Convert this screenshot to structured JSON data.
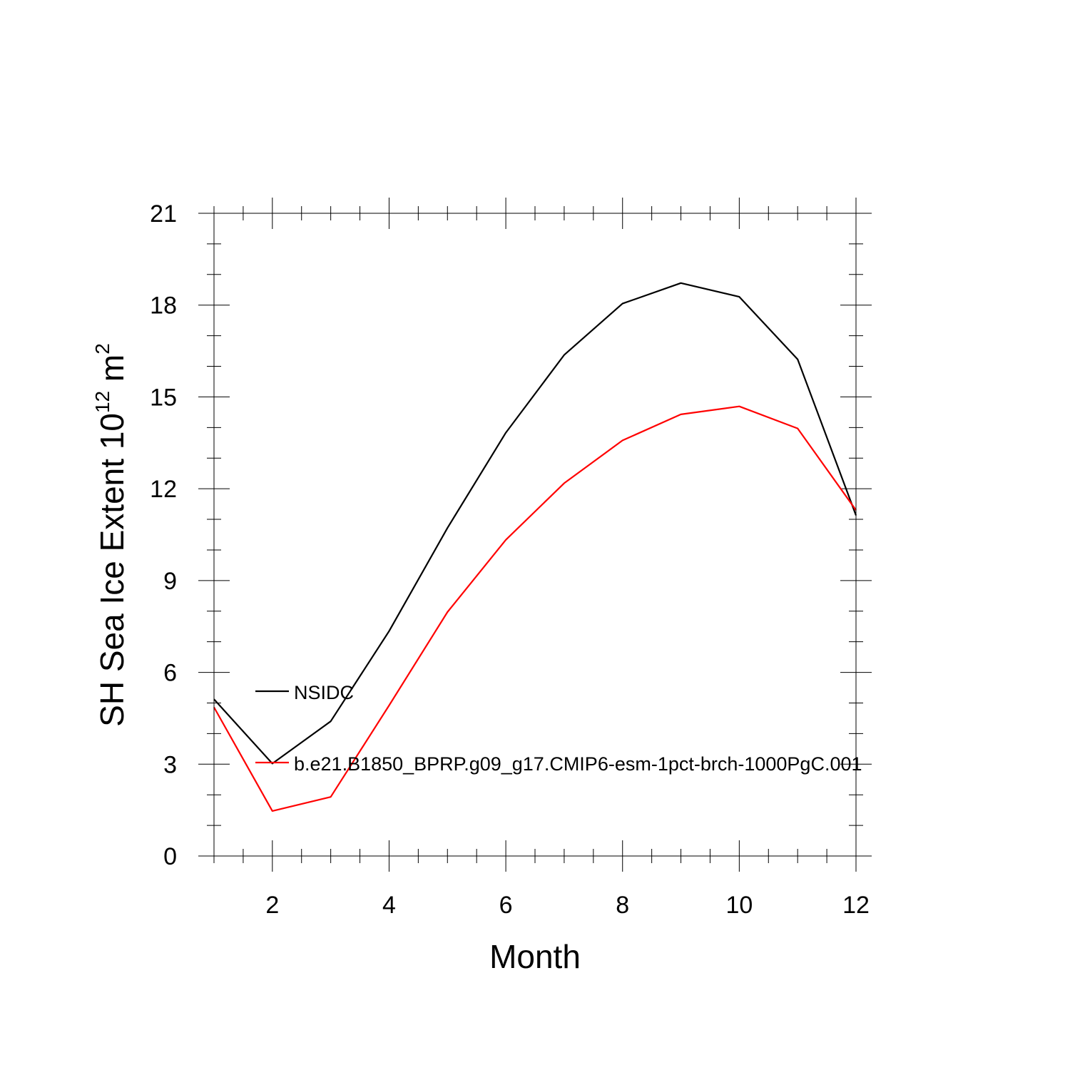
{
  "chart_data": {
    "type": "line",
    "title": "",
    "xlabel": "Month",
    "ylabel": {
      "main": "SH Sea Ice Extent 10",
      "exp": "12",
      "unit": " m",
      "unit_exp": "2"
    },
    "xlim": [
      1,
      12
    ],
    "ylim": [
      0,
      21
    ],
    "xticks": [
      2,
      4,
      6,
      8,
      10,
      12
    ],
    "yticks": [
      0,
      3,
      6,
      9,
      12,
      15,
      18,
      21
    ],
    "grid": false,
    "legend_placement": "left-middle",
    "x": [
      1,
      2,
      3,
      4,
      5,
      6,
      7,
      8,
      9,
      10,
      11,
      12
    ],
    "series": [
      {
        "name": "NSIDC",
        "color": "#000000",
        "values": [
          5.12,
          3.02,
          4.4,
          7.35,
          10.72,
          13.83,
          16.37,
          18.05,
          18.72,
          18.27,
          16.23,
          11.13
        ]
      },
      {
        "name": "b.e21.B1850_BPRP.g09_g17.CMIP6-esm-1pct-brch-1000PgC.001",
        "color": "#ff0000",
        "values": [
          4.86,
          1.47,
          1.93,
          4.92,
          7.97,
          10.33,
          12.18,
          13.58,
          14.43,
          14.69,
          13.97,
          11.3
        ]
      }
    ]
  }
}
